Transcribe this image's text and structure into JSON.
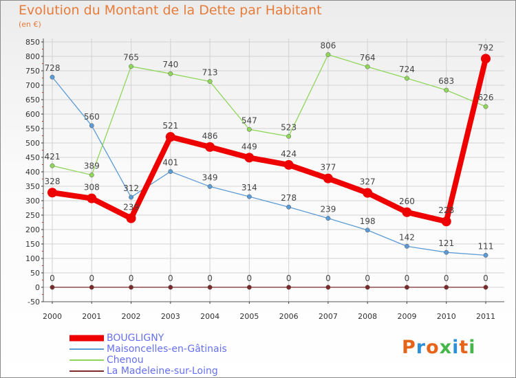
{
  "title": "Evolution du Montant de la Dette par Habitant",
  "subtitle": "(en €)",
  "logo": {
    "text": "Proxiti",
    "colors": [
      "#e6631a",
      "#2e8fd6",
      "#e6631a",
      "#46b54a",
      "#2e8fd6",
      "#e6631a",
      "#46b54a"
    ]
  },
  "chart_data": {
    "type": "line",
    "x": [
      "2000",
      "2001",
      "2002",
      "2003",
      "2004",
      "2005",
      "2006",
      "2007",
      "2008",
      "2009",
      "2010",
      "2011"
    ],
    "ylim": [
      -50,
      850
    ],
    "yticks": [
      -50,
      0,
      50,
      100,
      150,
      200,
      250,
      300,
      350,
      400,
      450,
      500,
      550,
      600,
      650,
      700,
      750,
      800,
      850
    ],
    "grid": true,
    "legend_position": "bottom-left",
    "series": [
      {
        "name": "Maisoncelles-en-Gâtinais",
        "color": "#5b9bd5",
        "values": [
          728,
          560,
          312,
          401,
          349,
          314,
          278,
          239,
          198,
          142,
          121,
          111
        ]
      },
      {
        "name": "Chenou",
        "color": "#8fd65a",
        "values": [
          421,
          389,
          765,
          740,
          713,
          547,
          523,
          806,
          764,
          724,
          683,
          626
        ]
      },
      {
        "name": "La Madeleine-sur-Loing",
        "color": "#7a2a2a",
        "values": [
          0,
          0,
          0,
          0,
          0,
          0,
          0,
          0,
          0,
          0,
          0,
          0
        ]
      },
      {
        "name": "BOUGLIGNY",
        "color": "#ee0000",
        "values": [
          328,
          308,
          239,
          521,
          486,
          449,
          424,
          377,
          327,
          260,
          228,
          792
        ]
      }
    ],
    "legend_order": [
      "BOUGLIGNY",
      "Maisoncelles-en-Gâtinais",
      "Chenou",
      "La Madeleine-sur-Loing"
    ]
  }
}
